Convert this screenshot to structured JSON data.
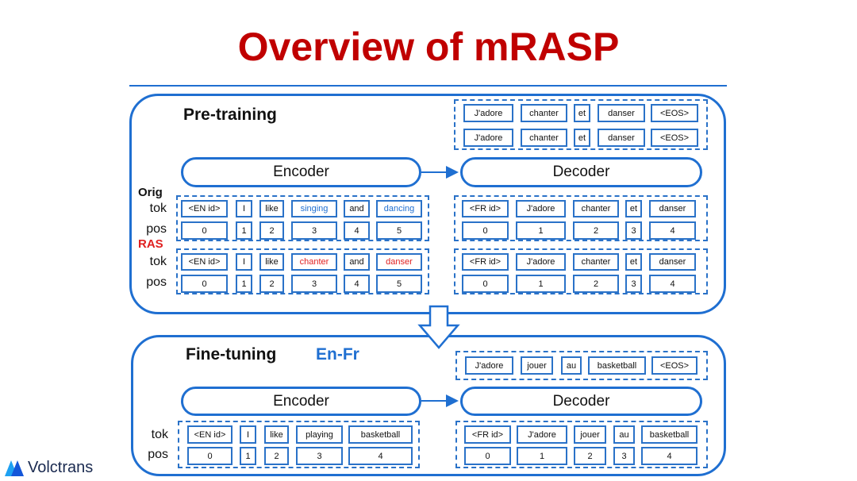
{
  "title": "Overview of mRASP",
  "pretraining": {
    "label": "Pre-training",
    "encoder": "Encoder",
    "decoder": "Decoder",
    "targets": [
      [
        "J'adore",
        "chanter",
        "et",
        "danser",
        "<EOS>"
      ],
      [
        "J'adore",
        "chanter",
        "et",
        "danser",
        "<EOS>"
      ]
    ],
    "orig": {
      "label": "Orig",
      "tok_label": "tok",
      "pos_label": "pos",
      "source": {
        "tokens": [
          "<EN id>",
          "I",
          "like",
          "singing",
          "and",
          "dancing"
        ],
        "positions": [
          0,
          1,
          2,
          3,
          4,
          5
        ]
      },
      "target": {
        "tokens": [
          "<FR id>",
          "J'adore",
          "chanter",
          "et",
          "danser"
        ],
        "positions": [
          0,
          1,
          2,
          3,
          4
        ]
      }
    },
    "ras": {
      "label": "RAS",
      "tok_label": "tok",
      "pos_label": "pos",
      "source": {
        "tokens": [
          "<EN id>",
          "I",
          "like",
          "chanter",
          "and",
          "danser"
        ],
        "positions": [
          0,
          1,
          2,
          3,
          4,
          5
        ]
      },
      "target": {
        "tokens": [
          "<FR id>",
          "J'adore",
          "chanter",
          "et",
          "danser"
        ],
        "positions": [
          0,
          1,
          2,
          3,
          4
        ]
      }
    }
  },
  "finetuning": {
    "label": "Fine-tuning",
    "pair": "En-Fr",
    "encoder": "Encoder",
    "decoder": "Decoder",
    "target_output": [
      "J'adore",
      "jouer",
      "au",
      "basketball",
      "<EOS>"
    ],
    "tok_label": "tok",
    "pos_label": "pos",
    "source": {
      "tokens": [
        "<EN id>",
        "I",
        "like",
        "playing",
        "basketball"
      ],
      "positions": [
        0,
        1,
        2,
        3,
        4
      ]
    },
    "target": {
      "tokens": [
        "<FR id>",
        "J'adore",
        "jouer",
        "au",
        "basketball"
      ],
      "positions": [
        0,
        1,
        2,
        3,
        4
      ]
    }
  },
  "logo": "Volctrans"
}
